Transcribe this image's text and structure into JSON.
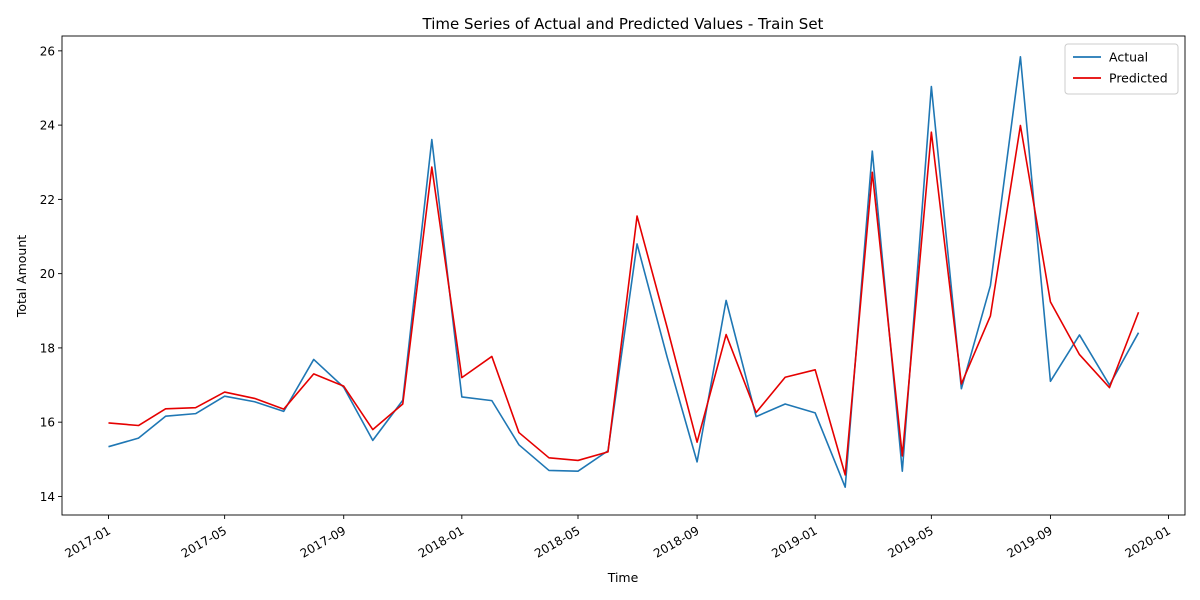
{
  "chart_data": {
    "type": "line",
    "title": "Time Series of Actual and Predicted Values - Train Set",
    "xlabel": "Time",
    "ylabel": "Total Amount",
    "x": [
      "2017-01",
      "2017-02",
      "2017-03",
      "2017-04",
      "2017-05",
      "2017-06",
      "2017-07",
      "2017-08",
      "2017-09",
      "2017-10",
      "2017-11",
      "2017-12",
      "2018-01",
      "2018-02",
      "2018-03",
      "2018-04",
      "2018-05",
      "2018-06",
      "2018-07",
      "2018-08",
      "2018-09",
      "2018-10",
      "2018-11",
      "2018-12",
      "2019-01",
      "2019-02",
      "2019-03",
      "2019-04",
      "2019-05",
      "2019-06",
      "2019-07",
      "2019-08",
      "2019-09",
      "2019-10",
      "2019-11",
      "2019-12"
    ],
    "series": [
      {
        "name": "Actual",
        "color": "#1f77b4",
        "values": [
          15.34,
          15.57,
          16.16,
          16.23,
          16.7,
          16.55,
          16.29,
          17.69,
          16.94,
          15.51,
          16.59,
          23.61,
          16.68,
          16.58,
          15.39,
          14.7,
          14.68,
          15.23,
          20.8,
          17.76,
          14.93,
          19.28,
          16.15,
          16.49,
          16.25,
          14.25,
          23.3,
          14.68,
          25.04,
          16.9,
          19.68,
          25.84,
          17.1,
          18.35,
          17.0,
          18.41
        ]
      },
      {
        "name": "Predicted",
        "color": "#e50000",
        "values": [
          15.98,
          15.91,
          16.36,
          16.39,
          16.81,
          16.64,
          16.35,
          17.3,
          16.97,
          15.8,
          16.49,
          22.87,
          17.2,
          17.77,
          15.72,
          15.04,
          14.97,
          15.2,
          21.55,
          18.56,
          15.46,
          18.36,
          16.26,
          17.21,
          17.41,
          14.58,
          22.73,
          15.09,
          23.81,
          17.03,
          18.86,
          23.99,
          19.24,
          17.82,
          16.93,
          18.96
        ]
      }
    ],
    "ylim": [
      13.5,
      26.4
    ],
    "xlim": [
      "2016-11-14",
      "2020-01-18"
    ],
    "yticks": [
      14,
      16,
      18,
      20,
      22,
      24,
      26
    ],
    "xticks": [
      "2017-01",
      "2017-05",
      "2017-09",
      "2018-01",
      "2018-05",
      "2018-09",
      "2019-01",
      "2019-05",
      "2019-09",
      "2020-01"
    ],
    "grid": false,
    "legend": "top-right"
  }
}
